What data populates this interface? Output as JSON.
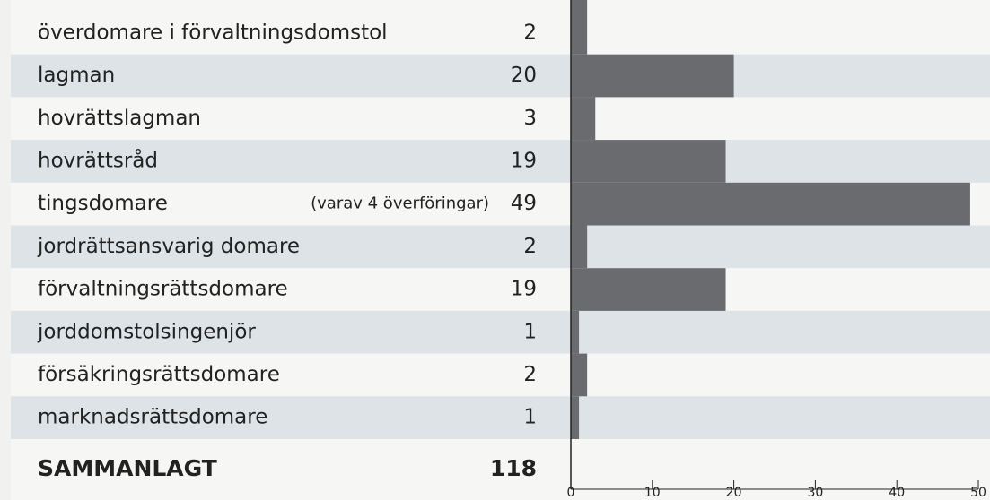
{
  "chart_data": {
    "type": "bar",
    "orientation": "horizontal",
    "categories": [
      "överdomare i förvaltningsdomstol",
      "lagman",
      "hovrättslagman",
      "hovrättsråd",
      "tingsdomare",
      "jordrättsansvarig domare",
      "förvaltningsrättsdomare",
      "jorddomstolsingenjör",
      "försäkringsrättsdomare",
      "marknadsrättsdomare"
    ],
    "values": [
      2,
      20,
      3,
      19,
      49,
      2,
      19,
      1,
      2,
      1
    ],
    "notes": [
      null,
      null,
      null,
      null,
      "(varav 4 överföringar)",
      null,
      null,
      null,
      null,
      null
    ],
    "total_label": "SAMMANLAGT",
    "total": 118,
    "color": "#6a6b6f",
    "xlim": [
      0,
      50
    ],
    "xticks": [
      0,
      10,
      20,
      30,
      40,
      50
    ]
  }
}
